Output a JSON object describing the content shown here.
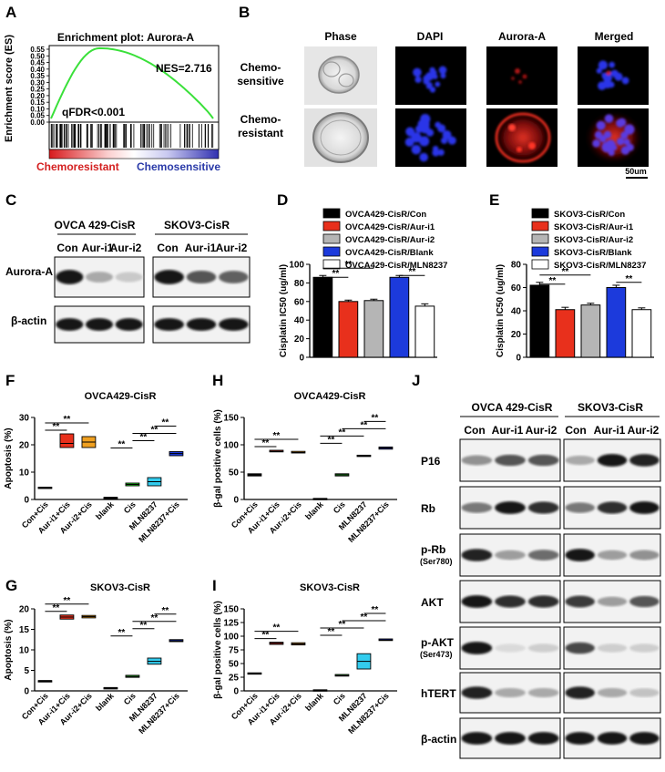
{
  "panels": {
    "A": "A",
    "B": "B",
    "C": "C",
    "D": "D",
    "E": "E",
    "F": "F",
    "G": "G",
    "H": "H",
    "I": "I",
    "J": "J"
  },
  "panel_a": {
    "title": "Enrichment plot: Aurora-A",
    "ylabel": "Enrichment score (ES)",
    "nes": "NES=2.716",
    "fdr": "qFDR<0.001",
    "left_label": "Chemoresistant",
    "right_label": "Chemosensitive",
    "yticks": [
      "0.55",
      "0.50",
      "0.45",
      "0.40",
      "0.35",
      "0.30",
      "0.25",
      "0.20",
      "0.15",
      "0.10",
      "0.05",
      "0.00"
    ]
  },
  "panel_b": {
    "columns": [
      "Phase",
      "DAPI",
      "Aurora-A",
      "Merged"
    ],
    "rows": [
      "Chemo-\nsensitive",
      "Chemo-\nresistant"
    ],
    "scale_bar": "50um"
  },
  "panel_c": {
    "groups": [
      "OVCA 429-CisR",
      "SKOV3-CisR"
    ],
    "lanes1": [
      "Con",
      "Aur-i1",
      "Aur-i2"
    ],
    "lanes2": [
      "Con",
      "Aur-i1",
      "Aur-i2"
    ],
    "rows": [
      "Aurora-A",
      "β-actin"
    ]
  },
  "panel_j": {
    "groups": [
      "OVCA 429-CisR",
      "SKOV3-CisR"
    ],
    "lanes1": [
      "Con",
      "Aur-i1",
      "Aur-i2"
    ],
    "lanes2": [
      "Con",
      "Aur-i1",
      "Aur-i2"
    ],
    "rows": [
      {
        "name": "P16",
        "sub": ""
      },
      {
        "name": "Rb",
        "sub": ""
      },
      {
        "name": "p-Rb",
        "sub": "(Ser780)"
      },
      {
        "name": "AKT",
        "sub": ""
      },
      {
        "name": "p-AKT",
        "sub": "(Ser473)"
      },
      {
        "name": "hTERT",
        "sub": ""
      },
      {
        "name": "β-actin",
        "sub": ""
      }
    ]
  },
  "chart_data": [
    {
      "id": "D",
      "type": "bar",
      "ylabel": "Cisplatin IC50 (ug/ml)",
      "ylim": [
        0,
        100
      ],
      "yticks": [
        0,
        20,
        40,
        60,
        80,
        100
      ],
      "series": [
        {
          "name": "OVCA429-CisR/Con",
          "value": 86,
          "err": 2,
          "color": "#000000"
        },
        {
          "name": "OVCA429-CisR/Aur-i1",
          "value": 60,
          "err": 1.5,
          "color": "#e8301c"
        },
        {
          "name": "OVCA429-CisR/Aur-i2",
          "value": 61,
          "err": 1.5,
          "color": "#b5b5b5"
        },
        {
          "name": "OVCA429-CisR/Blank",
          "value": 86,
          "err": 2,
          "color": "#1c3adc"
        },
        {
          "name": "OVCA429-CisR/MLN8237",
          "value": 55,
          "err": 2.5,
          "color": "#ffffff"
        }
      ],
      "sig": [
        {
          "from": 0,
          "to": 1,
          "label": "**"
        },
        {
          "from": 0,
          "to": 2,
          "label": "**"
        },
        {
          "from": 3,
          "to": 4,
          "label": "**"
        }
      ]
    },
    {
      "id": "E",
      "type": "bar",
      "ylabel": "Cisplatin IC50 (ug/ml)",
      "ylim": [
        0,
        80
      ],
      "yticks": [
        0,
        20,
        40,
        60,
        80
      ],
      "series": [
        {
          "name": "SKOV3-CisR/Con",
          "value": 62,
          "err": 2.5,
          "color": "#000000"
        },
        {
          "name": "SKOV3-CisR/Aur-i1",
          "value": 41,
          "err": 2,
          "color": "#e8301c"
        },
        {
          "name": "SKOV3-CisR/Aur-i2",
          "value": 45,
          "err": 1.5,
          "color": "#b5b5b5"
        },
        {
          "name": "SKOV3-CisR/Blank",
          "value": 60,
          "err": 2,
          "color": "#1c3adc"
        },
        {
          "name": "SKOV3-CisR/MLN8237",
          "value": 41,
          "err": 1.5,
          "color": "#ffffff"
        }
      ],
      "sig": [
        {
          "from": 0,
          "to": 1,
          "label": "**"
        },
        {
          "from": 0,
          "to": 2,
          "label": "**"
        },
        {
          "from": 3,
          "to": 4,
          "label": "**"
        }
      ]
    },
    {
      "id": "F",
      "type": "box",
      "title": "OVCA429-CisR",
      "ylabel": "Apoptosis (%)",
      "ylim": [
        0,
        30
      ],
      "yticks": [
        0,
        10,
        20,
        30
      ],
      "categories": [
        "Con+Cis",
        "Aur-i1+Cis",
        "Aur-i2+Cis",
        "blank",
        "Cis",
        "MLN8237",
        "MLN8237+Cis"
      ],
      "boxes": [
        {
          "low": 4.5,
          "high": 4.5,
          "median": 4.5,
          "color": "#000000"
        },
        {
          "low": 19,
          "high": 24,
          "median": 20.5,
          "color": "#e8301c"
        },
        {
          "low": 19,
          "high": 23,
          "median": 21,
          "color": "#f0a020"
        },
        {
          "low": 0.8,
          "high": 0.8,
          "median": 0.8,
          "color": "#000000"
        },
        {
          "low": 5,
          "high": 6,
          "median": 5.5,
          "color": "#22cc22"
        },
        {
          "low": 5,
          "high": 8,
          "median": 6.5,
          "color": "#33ccee"
        },
        {
          "low": 16,
          "high": 17.5,
          "median": 16.8,
          "color": "#1c3adc"
        }
      ],
      "sig": [
        {
          "from": 0,
          "to": 1,
          "label": "**"
        },
        {
          "from": 0,
          "to": 2,
          "label": "**"
        },
        {
          "from": 3,
          "to": 4,
          "label": "**"
        },
        {
          "from": 4,
          "to": 5,
          "label": "**"
        },
        {
          "from": 4,
          "to": 6,
          "label": "**"
        },
        {
          "from": 5,
          "to": 6,
          "label": "**"
        }
      ]
    },
    {
      "id": "H",
      "type": "box",
      "title": "OVCA429-CisR",
      "ylabel": "β-gal positive cells (%)",
      "ylim": [
        0,
        150
      ],
      "yticks": [
        0,
        50,
        100,
        150
      ],
      "categories": [
        "Con+Cis",
        "Aur-i1+Cis",
        "Aur-i2+Cis",
        "blank",
        "Cis",
        "MLN8237",
        "MLN8237+Cis"
      ],
      "boxes": [
        {
          "low": 43,
          "high": 47,
          "median": 45,
          "color": "#000000"
        },
        {
          "low": 87,
          "high": 90,
          "median": 88,
          "color": "#e8301c"
        },
        {
          "low": 85,
          "high": 88,
          "median": 86,
          "color": "#f0a020"
        },
        {
          "low": 1,
          "high": 2,
          "median": 1.5,
          "color": "#000000"
        },
        {
          "low": 43,
          "high": 47,
          "median": 45,
          "color": "#22cc22"
        },
        {
          "low": 79,
          "high": 81,
          "median": 80,
          "color": "#33ccee"
        },
        {
          "low": 92,
          "high": 96,
          "median": 94,
          "color": "#1c3adc"
        }
      ],
      "sig": [
        {
          "from": 0,
          "to": 1,
          "label": "**"
        },
        {
          "from": 0,
          "to": 2,
          "label": "**"
        },
        {
          "from": 3,
          "to": 4,
          "label": "**"
        },
        {
          "from": 3,
          "to": 5,
          "label": "**"
        },
        {
          "from": 4,
          "to": 6,
          "label": "**"
        },
        {
          "from": 5,
          "to": 6,
          "label": "**"
        }
      ]
    },
    {
      "id": "G",
      "type": "box",
      "title": "SKOV3-CisR",
      "ylabel": "Apoptosis (%)",
      "ylim": [
        0,
        20
      ],
      "yticks": [
        0,
        5,
        10,
        15,
        20
      ],
      "categories": [
        "Con+Cis",
        "Aur-i1+Cis",
        "Aur-i2+Cis",
        "blank",
        "Cis",
        "MLN8237",
        "MLN8237+Cis"
      ],
      "boxes": [
        {
          "low": 2.5,
          "high": 2.5,
          "median": 2.5,
          "color": "#000000"
        },
        {
          "low": 17.5,
          "high": 18.5,
          "median": 18,
          "color": "#e8301c"
        },
        {
          "low": 17.8,
          "high": 18.4,
          "median": 18.1,
          "color": "#f0a020"
        },
        {
          "low": 0.8,
          "high": 0.8,
          "median": 0.8,
          "color": "#000000"
        },
        {
          "low": 3.3,
          "high": 3.8,
          "median": 3.5,
          "color": "#22cc22"
        },
        {
          "low": 6.5,
          "high": 8,
          "median": 7.2,
          "color": "#33ccee"
        },
        {
          "low": 12,
          "high": 12.5,
          "median": 12.2,
          "color": "#1c3adc"
        }
      ],
      "sig": [
        {
          "from": 0,
          "to": 1,
          "label": "**"
        },
        {
          "from": 0,
          "to": 2,
          "label": "**"
        },
        {
          "from": 3,
          "to": 4,
          "label": "**"
        },
        {
          "from": 4,
          "to": 5,
          "label": "**"
        },
        {
          "from": 4,
          "to": 6,
          "label": "**"
        },
        {
          "from": 5,
          "to": 6,
          "label": "**"
        }
      ]
    },
    {
      "id": "I",
      "type": "box",
      "title": "SKOV3-CisR",
      "ylabel": "β-gal positive cells (%)",
      "ylim": [
        0,
        150
      ],
      "yticks": [
        0,
        25,
        50,
        75,
        100,
        125,
        150
      ],
      "categories": [
        "Con+Cis",
        "Aur-i1+Cis",
        "Aur-i2+Cis",
        "blank",
        "Cis",
        "MLN8237",
        "MLN8237+Cis"
      ],
      "boxes": [
        {
          "low": 31,
          "high": 33,
          "median": 32,
          "color": "#000000"
        },
        {
          "low": 85,
          "high": 89,
          "median": 87,
          "color": "#e8301c"
        },
        {
          "low": 84,
          "high": 88,
          "median": 86,
          "color": "#f0a020"
        },
        {
          "low": 1,
          "high": 2,
          "median": 1.5,
          "color": "#000000"
        },
        {
          "low": 27,
          "high": 30,
          "median": 28,
          "color": "#22cc22"
        },
        {
          "low": 40,
          "high": 68,
          "median": 54,
          "color": "#33ccee"
        },
        {
          "low": 92,
          "high": 95,
          "median": 93,
          "color": "#1c3adc"
        }
      ],
      "sig": [
        {
          "from": 0,
          "to": 1,
          "label": "**"
        },
        {
          "from": 0,
          "to": 2,
          "label": "**"
        },
        {
          "from": 3,
          "to": 4,
          "label": "**"
        },
        {
          "from": 3,
          "to": 5,
          "label": "**"
        },
        {
          "from": 4,
          "to": 6,
          "label": "**"
        },
        {
          "from": 5,
          "to": 6,
          "label": "**"
        }
      ]
    }
  ]
}
